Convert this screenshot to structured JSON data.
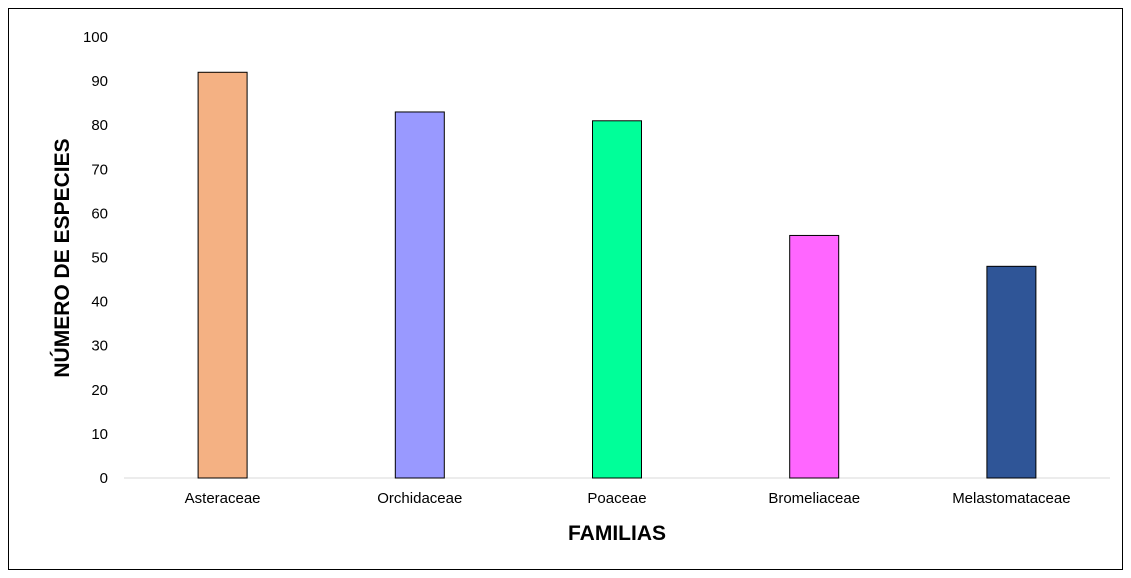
{
  "chart_data": {
    "type": "bar",
    "title": "",
    "xlabel": "FAMILIAS",
    "ylabel": "NÚMERO DE ESPECIES",
    "categories": [
      "Asteraceae",
      "Orchidaceae",
      "Poaceae",
      "Bromeliaceae",
      "Melastomataceae"
    ],
    "values": [
      92,
      83,
      81,
      55,
      48
    ],
    "colors": [
      "#F4B183",
      "#9999FF",
      "#00FF99",
      "#FF66FF",
      "#2F5597"
    ],
    "ylim": [
      0,
      100
    ],
    "yticks": [
      "0",
      "10",
      "20",
      "30",
      "40",
      "50",
      "60",
      "70",
      "80",
      "90",
      "100"
    ],
    "grid": false,
    "legend": "none"
  }
}
